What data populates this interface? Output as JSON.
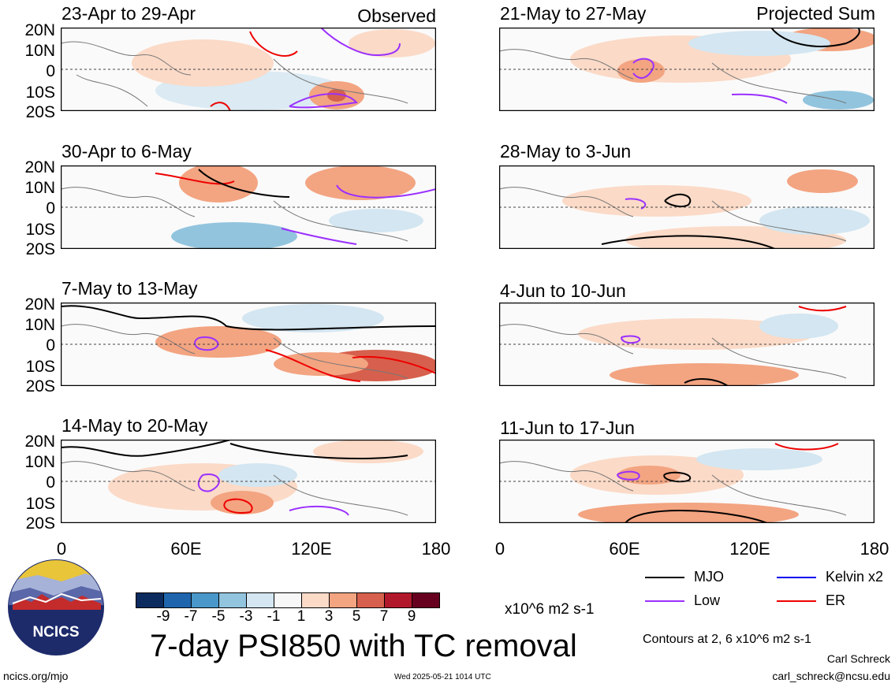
{
  "panels": [
    {
      "title": "23-Apr to 29-Apr",
      "tag": "Observed"
    },
    {
      "title": "21-May to 27-May",
      "tag": "Projected Sum"
    },
    {
      "title": "30-Apr to 6-May",
      "tag": ""
    },
    {
      "title": "28-May to 3-Jun",
      "tag": ""
    },
    {
      "title": "7-May to 13-May",
      "tag": ""
    },
    {
      "title": "4-Jun to 10-Jun",
      "tag": ""
    },
    {
      "title": "14-May to 20-May",
      "tag": ""
    },
    {
      "title": "11-Jun to 17-Jun",
      "tag": ""
    }
  ],
  "lat_labels": [
    "20N",
    "10N",
    "0",
    "10S",
    "20S"
  ],
  "lon_labels": [
    "0",
    "60E",
    "120E",
    "180"
  ],
  "colorbar": {
    "colors": [
      "#0b2b5e",
      "#1f65ad",
      "#4a97c9",
      "#92c4de",
      "#d3e6f1",
      "#f7f7f7",
      "#fbdac7",
      "#f3a481",
      "#d6604d",
      "#b2182b",
      "#67001f"
    ],
    "labels": [
      "-9",
      "-7",
      "-5",
      "-3",
      "-1",
      "1",
      "3",
      "5",
      "7",
      "9"
    ],
    "units": "x10^6 m2 s-1"
  },
  "title": "7-day PSI850 with TC removal",
  "legend": [
    {
      "label": "MJO",
      "color": "#000000"
    },
    {
      "label": "Kelvin x2",
      "color": "#0000ee"
    },
    {
      "label": "Low",
      "color": "#9b30ff"
    },
    {
      "label": "ER",
      "color": "#ee0000"
    }
  ],
  "contours_note": "Contours at 2, 6 x10^6 m2 s-1",
  "author": "Carl Schreck",
  "email": "carl_schreck@ncsu.edu",
  "website": "ncics.org/mjo",
  "timestamp": "Wed 2025-05-21 1014 UTC",
  "logo_text": "NCICS"
}
